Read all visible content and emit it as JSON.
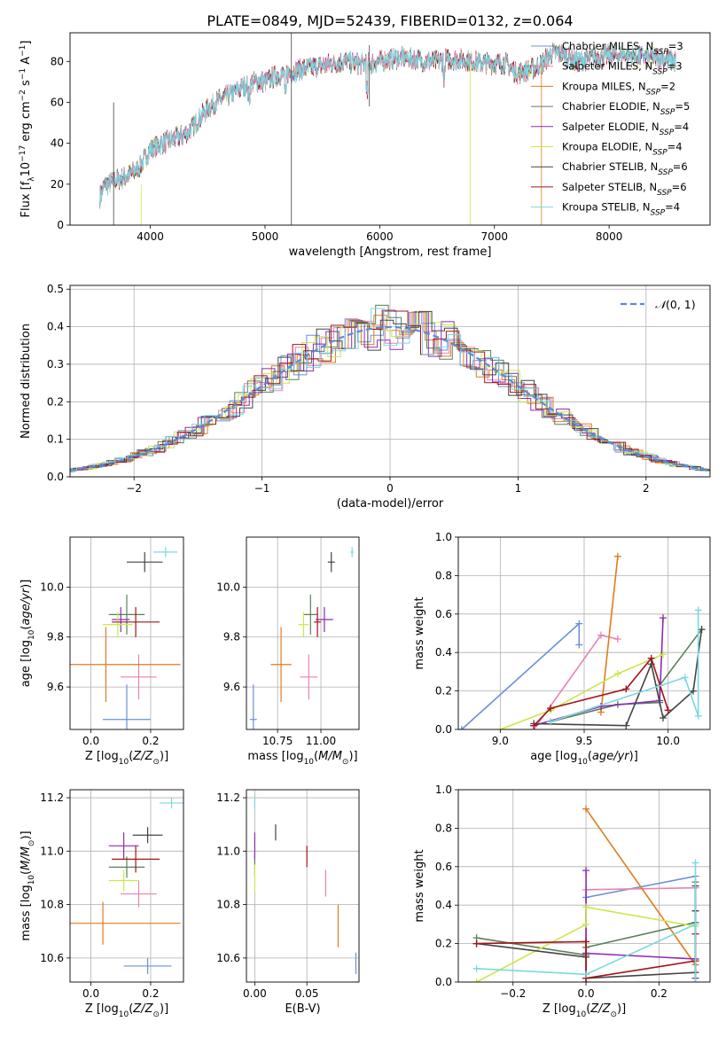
{
  "figure": {
    "suptitle": "PLATE=0849, MJD=52439, FIBERID=0132, z=0.064"
  },
  "palette": {
    "Chabrier MILES": "#6b8fd8",
    "Salpeter MILES": "#e882b4",
    "Kroupa MILES": "#e07b1f",
    "Chabrier ELODIE": "#5a7f5a",
    "Salpeter ELODIE": "#8c2bb0",
    "Kroupa ELODIE": "#c9e84a",
    "Chabrier STELIB": "#444444",
    "Salpeter STELIB": "#a3141a",
    "Kroupa STELIB": "#7ad8e0"
  },
  "chart_data": [
    {
      "id": "spectrum",
      "type": "line",
      "title": "",
      "xlabel": "wavelength [Angstrom, rest frame]",
      "ylabel": "Flux [f_λ10^-17 erg cm^-2 s^-1 A^-1]",
      "xlim": [
        3300,
        8880
      ],
      "ylim": [
        0,
        94
      ],
      "xticks": [
        4000,
        5000,
        6000,
        7000,
        8000
      ],
      "yticks": [
        0,
        20,
        40,
        60,
        80
      ],
      "legend_position": "right",
      "legend": [
        {
          "model": "Chabrier MILES",
          "label": "Chabrier MILES, N",
          "sub": "SSP",
          "tail": "=3"
        },
        {
          "model": "Salpeter MILES",
          "label": "Salpeter MILES, N",
          "sub": "SSP",
          "tail": "=3"
        },
        {
          "model": "Kroupa MILES",
          "label": "Kroupa MILES, N",
          "sub": "SSP",
          "tail": "=2"
        },
        {
          "model": "Chabrier ELODIE",
          "label": "Chabrier ELODIE, N",
          "sub": "SSP",
          "tail": "=5"
        },
        {
          "model": "Salpeter ELODIE",
          "label": "Salpeter ELODIE, N",
          "sub": "SSP",
          "tail": "=4"
        },
        {
          "model": "Kroupa ELODIE",
          "label": "Kroupa ELODIE, N",
          "sub": "SSP",
          "tail": "=4"
        },
        {
          "model": "Chabrier STELIB",
          "label": "Chabrier STELIB, N",
          "sub": "SSP",
          "tail": "=6"
        },
        {
          "model": "Salpeter STELIB",
          "label": "Salpeter STELIB, N",
          "sub": "SSP",
          "tail": "=6"
        },
        {
          "model": "Kroupa STELIB",
          "label": "Kroupa STELIB, N",
          "sub": "SSP",
          "tail": "=4"
        }
      ],
      "continuum": [
        [
          3560,
          14
        ],
        [
          3600,
          19
        ],
        [
          3700,
          22
        ],
        [
          3800,
          24
        ],
        [
          3900,
          28
        ],
        [
          4000,
          37
        ],
        [
          4100,
          40
        ],
        [
          4200,
          42
        ],
        [
          4300,
          44
        ],
        [
          4400,
          50
        ],
        [
          4500,
          57
        ],
        [
          4600,
          61
        ],
        [
          4700,
          64
        ],
        [
          4800,
          67
        ],
        [
          4900,
          70
        ],
        [
          5000,
          70
        ],
        [
          5100,
          73
        ],
        [
          5200,
          74
        ],
        [
          5300,
          76
        ],
        [
          5400,
          77
        ],
        [
          5500,
          78
        ],
        [
          5600,
          79
        ],
        [
          5700,
          80
        ],
        [
          5800,
          79
        ],
        [
          5900,
          79
        ],
        [
          6000,
          80
        ],
        [
          6100,
          81
        ],
        [
          6200,
          82
        ],
        [
          6300,
          81
        ],
        [
          6400,
          80
        ],
        [
          6500,
          80
        ],
        [
          6600,
          81
        ],
        [
          6700,
          81
        ],
        [
          6800,
          80
        ],
        [
          6900,
          79
        ],
        [
          7000,
          79
        ],
        [
          7100,
          79
        ],
        [
          7200,
          74
        ],
        [
          7300,
          76
        ],
        [
          7400,
          78
        ],
        [
          7500,
          84
        ],
        [
          7600,
          84
        ],
        [
          7700,
          80
        ],
        [
          7800,
          81
        ],
        [
          7900,
          82
        ],
        [
          8000,
          83
        ],
        [
          8100,
          83
        ],
        [
          8200,
          83
        ],
        [
          8300,
          82
        ],
        [
          8400,
          82
        ],
        [
          8500,
          81
        ],
        [
          8580,
          80
        ]
      ]
    },
    {
      "id": "residual-histogram",
      "type": "histogram",
      "title": "",
      "xlabel": "(data-model)/error",
      "ylabel": "Normed distribution",
      "xlim": [
        -2.5,
        2.5
      ],
      "ylim": [
        0,
        0.51
      ],
      "xticks": [
        -2,
        -1,
        0,
        1,
        2
      ],
      "yticks": [
        0.0,
        0.1,
        0.2,
        0.3,
        0.4,
        0.5
      ],
      "grid": true,
      "legend_position": "top-right",
      "legend": "N(0,1)",
      "reference_curve": "normal(0,1)"
    },
    {
      "id": "age-vs-Z",
      "type": "scatter",
      "xlabel": "Z [log10(Z/Z_sun)]",
      "ylabel": "age [log10(age/yr)]",
      "xlim": [
        -0.07,
        0.31
      ],
      "ylim": [
        9.43,
        10.2
      ],
      "xticks": [
        0.0,
        0.2
      ],
      "yticks": [
        9.6,
        9.8,
        10.0
      ],
      "grid": true,
      "points": [
        {
          "model": "Chabrier MILES",
          "x": 0.12,
          "y": 9.47,
          "xerr": 0.08,
          "yerr": 0.14
        },
        {
          "model": "Salpeter MILES",
          "x": 0.16,
          "y": 9.64,
          "xerr": 0.06,
          "yerr": 0.09
        },
        {
          "model": "Kroupa MILES",
          "x": 0.05,
          "y": 9.69,
          "xerr": 0.25,
          "yerr": 0.15
        },
        {
          "model": "Chabrier ELODIE",
          "x": 0.12,
          "y": 9.89,
          "xerr": 0.06,
          "yerr": 0.08
        },
        {
          "model": "Salpeter ELODIE",
          "x": 0.1,
          "y": 9.87,
          "xerr": 0.03,
          "yerr": 0.05
        },
        {
          "model": "Kroupa ELODIE",
          "x": 0.09,
          "y": 9.85,
          "xerr": 0.05,
          "yerr": 0.05
        },
        {
          "model": "Chabrier STELIB",
          "x": 0.18,
          "y": 10.1,
          "xerr": 0.06,
          "yerr": 0.04
        },
        {
          "model": "Salpeter STELIB",
          "x": 0.15,
          "y": 9.86,
          "xerr": 0.08,
          "yerr": 0.06
        },
        {
          "model": "Kroupa STELIB",
          "x": 0.25,
          "y": 10.14,
          "xerr": 0.04,
          "yerr": 0.02
        }
      ]
    },
    {
      "id": "age-vs-mass",
      "type": "scatter",
      "xlabel": "mass [log10(M/M_sun)]",
      "ylabel": "",
      "xlim": [
        10.57,
        11.22
      ],
      "ylim": [
        9.43,
        10.2
      ],
      "xticks": [
        10.75,
        11.0
      ],
      "yticks": [
        9.6,
        9.8,
        10.0
      ],
      "grid": true,
      "points": [
        {
          "model": "Chabrier MILES",
          "x": 10.61,
          "y": 9.47,
          "xerr": 0.02,
          "yerr": 0.14
        },
        {
          "model": "Salpeter MILES",
          "x": 10.93,
          "y": 9.64,
          "xerr": 0.05,
          "yerr": 0.09
        },
        {
          "model": "Kroupa MILES",
          "x": 10.77,
          "y": 9.69,
          "xerr": 0.06,
          "yerr": 0.15
        },
        {
          "model": "Chabrier ELODIE",
          "x": 10.94,
          "y": 9.89,
          "xerr": 0.04,
          "yerr": 0.08
        },
        {
          "model": "Salpeter ELODIE",
          "x": 11.02,
          "y": 9.87,
          "xerr": 0.05,
          "yerr": 0.05
        },
        {
          "model": "Kroupa ELODIE",
          "x": 10.9,
          "y": 9.85,
          "xerr": 0.03,
          "yerr": 0.05
        },
        {
          "model": "Chabrier STELIB",
          "x": 11.06,
          "y": 10.1,
          "xerr": 0.02,
          "yerr": 0.04
        },
        {
          "model": "Salpeter STELIB",
          "x": 10.98,
          "y": 9.86,
          "xerr": 0.02,
          "yerr": 0.06
        },
        {
          "model": "Kroupa STELIB",
          "x": 11.18,
          "y": 10.14,
          "xerr": 0.01,
          "yerr": 0.02
        }
      ]
    },
    {
      "id": "weight-vs-age",
      "type": "line",
      "xlabel": "age [log10(age/yr)]",
      "ylabel": "mass weight",
      "xlim": [
        8.75,
        10.25
      ],
      "ylim": [
        0,
        1
      ],
      "xticks": [
        9.0,
        9.5,
        10.0
      ],
      "yticks": [
        0.0,
        0.2,
        0.4,
        0.6,
        0.8,
        1.0
      ],
      "grid": true,
      "series": [
        {
          "model": "Chabrier MILES",
          "x": [
            8.77,
            9.47,
            9.47
          ],
          "y": [
            0.0,
            0.55,
            0.44
          ]
        },
        {
          "model": "Salpeter MILES",
          "x": [
            9.2,
            9.6,
            9.7
          ],
          "y": [
            0.0,
            0.49,
            0.47
          ]
        },
        {
          "model": "Kroupa MILES",
          "x": [
            9.6,
            9.7
          ],
          "y": [
            0.09,
            0.9
          ]
        },
        {
          "model": "Chabrier ELODIE",
          "x": [
            9.3,
            9.7,
            9.95,
            9.95,
            10.2
          ],
          "y": [
            0.04,
            0.13,
            0.14,
            0.23,
            0.52
          ]
        },
        {
          "model": "Salpeter ELODIE",
          "x": [
            9.2,
            9.6,
            9.95,
            9.97
          ],
          "y": [
            0.02,
            0.12,
            0.15,
            0.58
          ]
        },
        {
          "model": "Kroupa ELODIE",
          "x": [
            9.0,
            9.3,
            9.7,
            9.97
          ],
          "y": [
            0.0,
            0.1,
            0.29,
            0.39
          ]
        },
        {
          "model": "Chabrier STELIB",
          "x": [
            9.2,
            9.75,
            9.9,
            9.97,
            10.15,
            10.2
          ],
          "y": [
            0.03,
            0.02,
            0.34,
            0.06,
            0.2,
            0.52
          ]
        },
        {
          "model": "Salpeter STELIB",
          "x": [
            9.2,
            9.3,
            9.75,
            9.9,
            10.0
          ],
          "y": [
            0.02,
            0.11,
            0.21,
            0.37,
            0.1
          ]
        },
        {
          "model": "Kroupa STELIB",
          "x": [
            9.3,
            10.1,
            10.18,
            10.18
          ],
          "y": [
            0.04,
            0.27,
            0.07,
            0.62
          ]
        }
      ]
    },
    {
      "id": "mass-vs-Z",
      "type": "scatter",
      "xlabel": "Z [log10(Z/Z_sun)]",
      "ylabel": "mass [log10(M/M_sun)]",
      "xlim": [
        -0.07,
        0.31
      ],
      "ylim": [
        10.51,
        11.23
      ],
      "xticks": [
        0.0,
        0.2
      ],
      "yticks": [
        10.6,
        10.8,
        11.0,
        11.2
      ],
      "grid": true,
      "points": [
        {
          "model": "Chabrier MILES",
          "x": 0.19,
          "y": 10.57,
          "xerr": 0.08,
          "yerr": 0.03
        },
        {
          "model": "Salpeter MILES",
          "x": 0.16,
          "y": 10.84,
          "xerr": 0.06,
          "yerr": 0.05
        },
        {
          "model": "Kroupa MILES",
          "x": 0.04,
          "y": 10.73,
          "xerr": 0.26,
          "yerr": 0.08
        },
        {
          "model": "Chabrier ELODIE",
          "x": 0.12,
          "y": 10.94,
          "xerr": 0.06,
          "yerr": 0.04
        },
        {
          "model": "Salpeter ELODIE",
          "x": 0.11,
          "y": 11.02,
          "xerr": 0.05,
          "yerr": 0.05
        },
        {
          "model": "Kroupa ELODIE",
          "x": 0.11,
          "y": 10.89,
          "xerr": 0.05,
          "yerr": 0.04
        },
        {
          "model": "Chabrier STELIB",
          "x": 0.19,
          "y": 11.06,
          "xerr": 0.05,
          "yerr": 0.03
        },
        {
          "model": "Salpeter STELIB",
          "x": 0.15,
          "y": 10.97,
          "xerr": 0.08,
          "yerr": 0.05
        },
        {
          "model": "Kroupa STELIB",
          "x": 0.27,
          "y": 11.18,
          "xerr": 0.04,
          "yerr": 0.02
        }
      ]
    },
    {
      "id": "mass-vs-ebv",
      "type": "scatter",
      "xlabel": "E(B-V)",
      "ylabel": "",
      "xlim": [
        -0.008,
        0.1
      ],
      "ylim": [
        10.51,
        11.23
      ],
      "xticks": [
        0.0,
        0.05
      ],
      "yticks": [
        10.6,
        10.8,
        11.0,
        11.2
      ],
      "grid": true,
      "points": [
        {
          "model": "Chabrier MILES",
          "x": 0.097,
          "y": 10.58,
          "xerr": 0,
          "yerr": 0.04
        },
        {
          "model": "Salpeter MILES",
          "x": 0.068,
          "y": 10.88,
          "xerr": 0,
          "yerr": 0.05
        },
        {
          "model": "Kroupa MILES",
          "x": 0.08,
          "y": 10.72,
          "xerr": 0,
          "yerr": 0.08
        },
        {
          "model": "Chabrier ELODIE",
          "x": 0.0,
          "y": 10.95,
          "xerr": 0,
          "yerr": 0.04
        },
        {
          "model": "Salpeter ELODIE",
          "x": 0.0,
          "y": 11.02,
          "xerr": 0,
          "yerr": 0.05
        },
        {
          "model": "Kroupa ELODIE",
          "x": 0.0,
          "y": 10.9,
          "xerr": 0,
          "yerr": 0.05
        },
        {
          "model": "Chabrier STELIB",
          "x": 0.02,
          "y": 11.07,
          "xerr": 0,
          "yerr": 0.03
        },
        {
          "model": "Salpeter STELIB",
          "x": 0.05,
          "y": 10.98,
          "xerr": 0,
          "yerr": 0.04
        },
        {
          "model": "Kroupa STELIB",
          "x": 0.0,
          "y": 11.18,
          "xerr": 0,
          "yerr": 0.02
        }
      ]
    },
    {
      "id": "weight-vs-Z",
      "type": "line",
      "xlabel": "Z [log10(Z/Z_sun)]",
      "ylabel": "mass weight",
      "xlim": [
        -0.35,
        0.34
      ],
      "ylim": [
        0,
        1
      ],
      "xticks": [
        -0.2,
        0.0,
        0.2
      ],
      "yticks": [
        0.0,
        0.2,
        0.4,
        0.6,
        0.8,
        1.0
      ],
      "grid": true,
      "series": [
        {
          "model": "Chabrier MILES",
          "x": [
            0.0,
            0.0,
            0.3
          ],
          "y": [
            0.0,
            0.44,
            0.55
          ]
        },
        {
          "model": "Salpeter MILES",
          "x": [
            0.0,
            0.0,
            0.3
          ],
          "y": [
            0.0,
            0.48,
            0.49
          ]
        },
        {
          "model": "Kroupa MILES",
          "x": [
            0.0,
            0.3
          ],
          "y": [
            0.9,
            0.09
          ]
        },
        {
          "model": "Chabrier ELODIE",
          "x": [
            -0.3,
            0.0,
            0.0,
            0.3,
            0.3
          ],
          "y": [
            0.23,
            0.14,
            0.18,
            0.31,
            0.52
          ]
        },
        {
          "model": "Salpeter ELODIE",
          "x": [
            0.0,
            0.0,
            0.3,
            0.3
          ],
          "y": [
            0.58,
            0.15,
            0.12,
            0.02
          ]
        },
        {
          "model": "Kroupa ELODIE",
          "x": [
            -0.3,
            0.0,
            0.0,
            0.3
          ],
          "y": [
            0.0,
            0.3,
            0.39,
            0.29
          ]
        },
        {
          "model": "Chabrier STELIB",
          "x": [
            -0.3,
            0.0,
            0.0,
            0.3,
            0.3,
            0.3
          ],
          "y": [
            0.2,
            0.13,
            0.02,
            0.05,
            0.37,
            0.5
          ]
        },
        {
          "model": "Salpeter STELIB",
          "x": [
            -0.3,
            0.0,
            0.0,
            0.3,
            0.3
          ],
          "y": [
            0.2,
            0.21,
            0.02,
            0.11,
            0.25
          ]
        },
        {
          "model": "Kroupa STELIB",
          "x": [
            -0.3,
            0.0,
            0.3,
            0.3,
            0.3
          ],
          "y": [
            0.07,
            0.04,
            0.3,
            0.62,
            0.0
          ]
        }
      ]
    }
  ]
}
